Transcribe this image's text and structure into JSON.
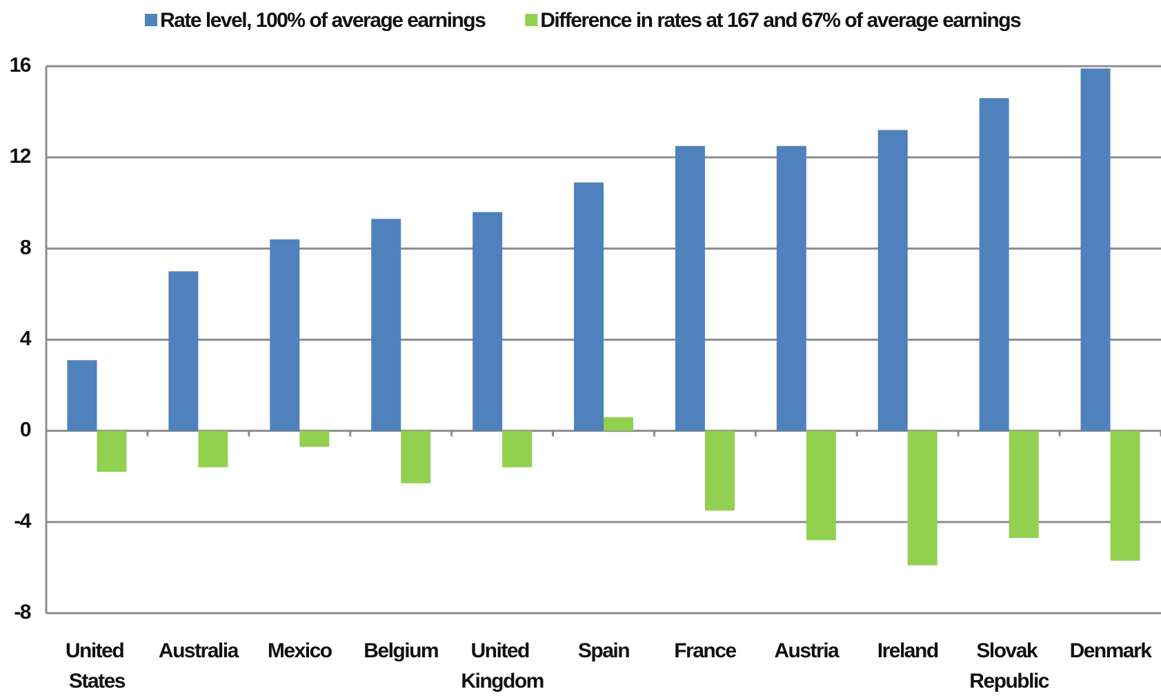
{
  "chart_data": {
    "type": "bar",
    "categories": [
      "United States",
      "Australia",
      "Mexico",
      "Belgium",
      "United Kingdom",
      "Spain",
      "France",
      "Austria",
      "Ireland",
      "Slovak Republic",
      "Denmark"
    ],
    "series": [
      {
        "name": "Rate level, 100% of average earnings",
        "color": "#4f81bd",
        "values": [
          3.1,
          7.0,
          8.4,
          9.3,
          9.6,
          10.9,
          12.5,
          12.5,
          13.2,
          14.6,
          15.9
        ]
      },
      {
        "name": "Difference in rates at 167 and 67% of average earnings",
        "color": "#92d050",
        "values": [
          -1.8,
          -1.6,
          -0.7,
          -2.3,
          -1.6,
          0.6,
          -3.5,
          -4.8,
          -5.9,
          -4.7,
          -5.7
        ]
      }
    ],
    "ylim": [
      -8,
      16
    ],
    "yticks": [
      -8,
      -4,
      0,
      4,
      8,
      12,
      16
    ],
    "grid": true,
    "legend": "top"
  }
}
